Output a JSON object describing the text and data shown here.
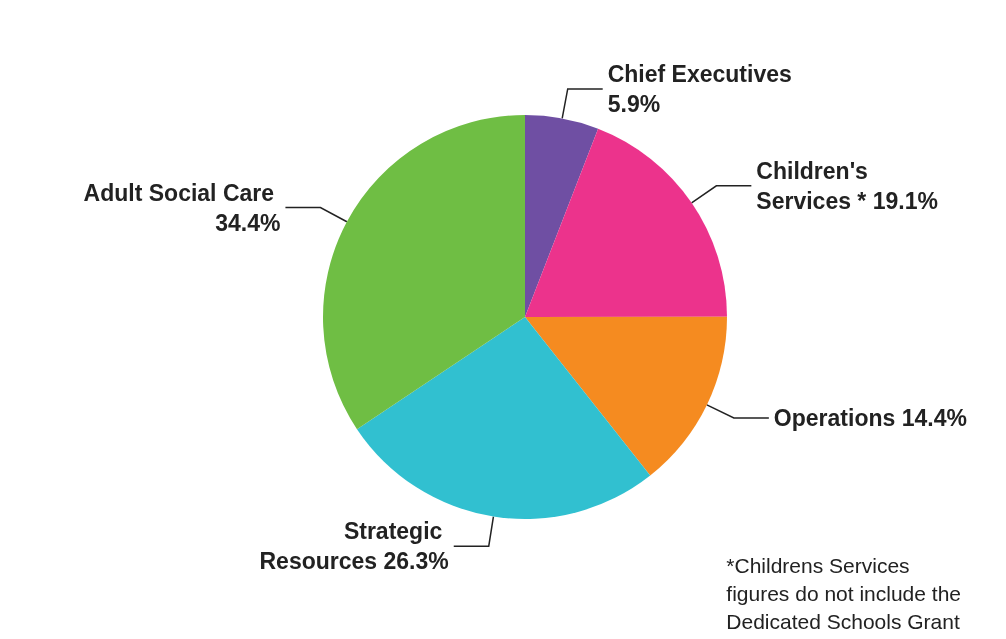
{
  "chart_data": {
    "type": "pie",
    "categories": [
      "Chief Executives",
      "Children's Services *",
      "Operations",
      "Strategic Resources",
      "Adult Social Care"
    ],
    "values": [
      5.9,
      19.1,
      14.4,
      26.3,
      34.4
    ],
    "value_labels": [
      "5.9%",
      "19.1%",
      "14.4%",
      "26.3%",
      "34.4%"
    ],
    "colors": [
      "#6f4fa3",
      "#ec338c",
      "#f58b20",
      "#31c0d0",
      "#6fbe44"
    ],
    "annotations": [
      "*Childrens Services\nfigures do not include the\nDedicated Schools Grant"
    ],
    "legend": false
  }
}
